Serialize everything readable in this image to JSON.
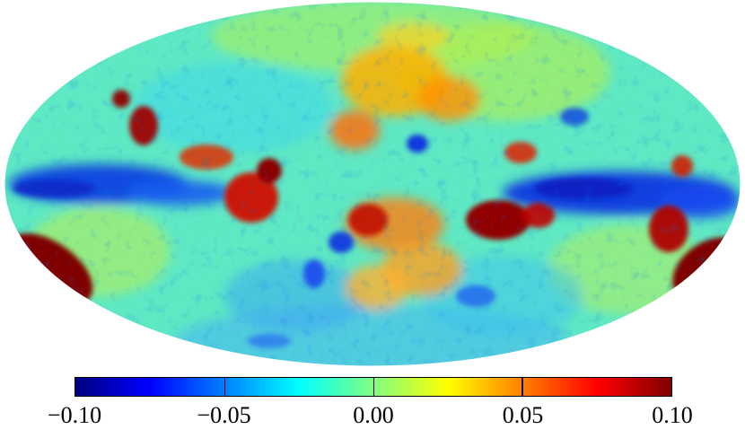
{
  "map": {
    "projection": "mollweide",
    "colormap": "jet"
  },
  "colorbar": {
    "min": -0.1,
    "max": 0.1,
    "stops": [
      "#000080",
      "#0000ff",
      "#0080ff",
      "#00ffff",
      "#80ff80",
      "#ffff00",
      "#ff8000",
      "#ff0000",
      "#800000"
    ],
    "ticks": [
      {
        "value": -0.1,
        "label": "−0.10"
      },
      {
        "value": -0.05,
        "label": "−0.05"
      },
      {
        "value": 0.0,
        "label": "0.00"
      },
      {
        "value": 0.05,
        "label": "0.05"
      },
      {
        "value": 0.1,
        "label": "0.10"
      }
    ]
  }
}
